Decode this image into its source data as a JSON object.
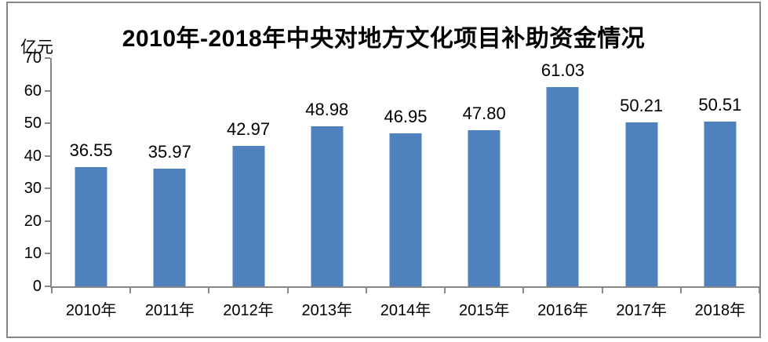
{
  "chart_data": {
    "type": "bar",
    "title": "2010年-2018年中央对地方文化项目补助资金情况",
    "unit_label": "亿元",
    "ylabel": "亿元",
    "xlabel": "",
    "categories": [
      "2010年",
      "2011年",
      "2012年",
      "2013年",
      "2014年",
      "2015年",
      "2016年",
      "2017年",
      "2018年"
    ],
    "values": [
      36.55,
      35.97,
      42.97,
      48.98,
      46.95,
      47.8,
      61.03,
      50.21,
      50.51
    ],
    "value_labels": [
      "36.55",
      "35.97",
      "42.97",
      "48.98",
      "46.95",
      "47.80",
      "61.03",
      "50.21",
      "50.51"
    ],
    "ylim": [
      0,
      70
    ],
    "yticks": [
      0,
      10,
      20,
      30,
      40,
      50,
      60,
      70
    ],
    "grid": false,
    "legend": false,
    "bar_color": "#4F81BD",
    "axis_color": "#878787",
    "frame_color": "#878787",
    "text_color": "#000000"
  }
}
